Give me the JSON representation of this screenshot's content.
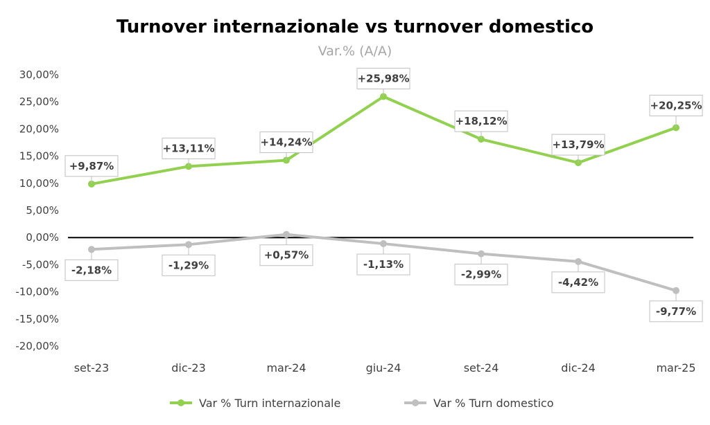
{
  "chart_data": {
    "type": "line",
    "title": "Turnover internazionale vs turnover domestico",
    "subtitle": "Var.% (A/A)",
    "categories": [
      "set-23",
      "dic-23",
      "mar-24",
      "giu-24",
      "set-24",
      "dic-24",
      "mar-25"
    ],
    "ylim": [
      -20,
      30
    ],
    "ytick_step": 5,
    "yticks": [
      "30,00%",
      "25,00%",
      "20,00%",
      "15,00%",
      "10,00%",
      "5,00%",
      "0,00%",
      "-5,00%",
      "-10,00%",
      "-15,00%",
      "-20,00%"
    ],
    "legend_position": "bottom",
    "series": [
      {
        "name": "Var % Turn internazionale",
        "color": "#92d050",
        "values": [
          9.87,
          13.11,
          14.24,
          25.98,
          18.12,
          13.79,
          20.25
        ],
        "labels": [
          "+9,87%",
          "+13,11%",
          "+14,24%",
          "+25,98%",
          "+18,12%",
          "+13,79%",
          "+20,25%"
        ]
      },
      {
        "name": "Var % Turn domestico",
        "color": "#bfbfbf",
        "values": [
          -2.18,
          -1.29,
          0.57,
          -1.13,
          -2.99,
          -4.42,
          -9.77
        ],
        "labels": [
          "-2,18%",
          "-1,29%",
          "+0,57%",
          "-1,13%",
          "-2,99%",
          "-4,42%",
          "-9,77%"
        ]
      }
    ]
  }
}
